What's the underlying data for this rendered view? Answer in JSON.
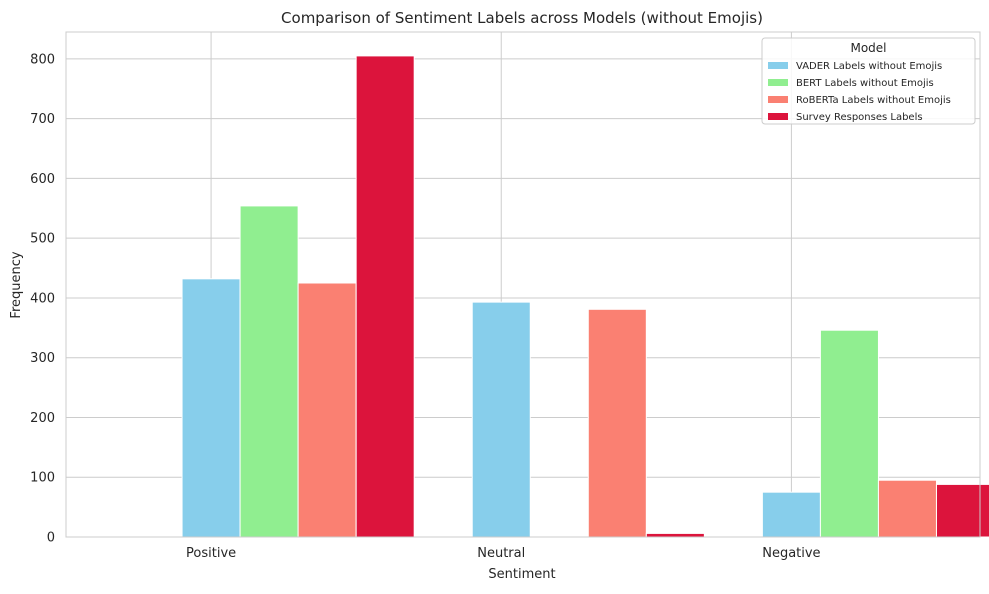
{
  "chart_data": {
    "type": "bar",
    "title": "Comparison of Sentiment Labels across Models (without Emojis)",
    "xlabel": "Sentiment",
    "ylabel": "Frequency",
    "categories": [
      "Positive",
      "Neutral",
      "Negative"
    ],
    "ylim": [
      0,
      845
    ],
    "yticks": [
      0,
      100,
      200,
      300,
      400,
      500,
      600,
      700,
      800
    ],
    "grid": true,
    "legend": {
      "title": "Model",
      "placement": "top-right"
    },
    "series": [
      {
        "name": "VADER Labels without Emojis",
        "color": "#87CEEB",
        "values": [
          432,
          393,
          75
        ]
      },
      {
        "name": "BERT Labels without Emojis",
        "color": "#90EE90",
        "values": [
          554,
          0,
          346
        ]
      },
      {
        "name": "RoBERTa Labels without Emojis",
        "color": "#FA8072",
        "values": [
          425,
          381,
          95
        ]
      },
      {
        "name": "Survey Responses Labels",
        "color": "#DC143C",
        "values": [
          805,
          6,
          88
        ]
      }
    ]
  }
}
